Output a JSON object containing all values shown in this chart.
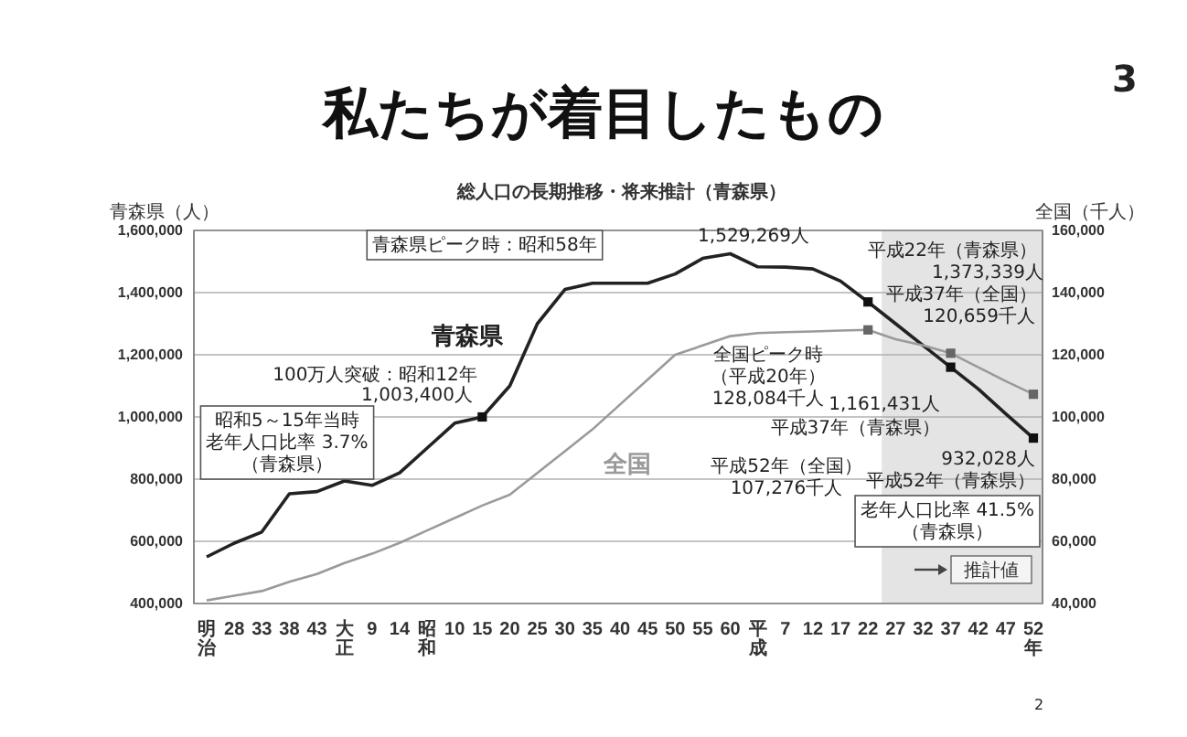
{
  "chart_data": {
    "type": "line",
    "title": "私たちが着目したもの",
    "subtitle": "総人口の長期推移・将来推計（青森県）",
    "ylabel": "青森県（人）",
    "y2label": "全国（千人）",
    "categories": [
      "明治",
      "28",
      "33",
      "38",
      "43",
      "大正",
      "9",
      "14",
      "昭和",
      "10",
      "15",
      "20",
      "25",
      "30",
      "35",
      "40",
      "45",
      "50",
      "55",
      "60",
      "平成",
      "7",
      "12",
      "17",
      "22",
      "27",
      "32",
      "37",
      "42",
      "47",
      "52年"
    ],
    "ylim": [
      400000,
      1600000
    ],
    "yticks": [
      {
        "value": 400000,
        "label": "400,000"
      },
      {
        "value": 600000,
        "label": "600,000"
      },
      {
        "value": 800000,
        "label": "800,000"
      },
      {
        "value": 1000000,
        "label": "1,000,000"
      },
      {
        "value": 1200000,
        "label": "1,200,000"
      },
      {
        "value": 1400000,
        "label": "1,400,000"
      },
      {
        "value": 1600000,
        "label": "1,600,000"
      }
    ],
    "y2lim": [
      40000,
      160000
    ],
    "y2ticks": [
      {
        "value": 40000,
        "label": "40,000"
      },
      {
        "value": 60000,
        "label": "60,000"
      },
      {
        "value": 80000,
        "label": "80,000"
      },
      {
        "value": 100000,
        "label": "100,000"
      },
      {
        "value": 120000,
        "label": "120,000"
      },
      {
        "value": 140000,
        "label": "140,000"
      },
      {
        "value": 160000,
        "label": "160,000"
      }
    ],
    "grid": "y",
    "series": [
      {
        "name": "青森県",
        "color": "#222222",
        "values": [
          550000,
          594000,
          630000,
          753000,
          760000,
          794000,
          780000,
          820000,
          900000,
          980000,
          1000000,
          1100000,
          1300000,
          1410000,
          1430000,
          1430000,
          1430000,
          1460000,
          1510000,
          1525000,
          1483000,
          1482000,
          1476000,
          1437000,
          1370000,
          1300000,
          1230000,
          1160000,
          1090000,
          1010000,
          932000
        ]
      },
      {
        "name": "全国",
        "color": "#9a9a9a",
        "axis": "y2",
        "values": [
          41000,
          42500,
          44000,
          47000,
          49500,
          53000,
          56000,
          59500,
          63500,
          67500,
          71500,
          75000,
          82000,
          89000,
          96000,
          104000,
          112000,
          120000,
          123000,
          126000,
          127000,
          127300,
          127500,
          127800,
          128000,
          125000,
          123000,
          120500,
          116000,
          111500,
          107300
        ]
      },
      {
        "type": "scatter",
        "marker": "square",
        "color": "#111111",
        "values": [
          null,
          null,
          null,
          null,
          null,
          null,
          null,
          null,
          null,
          null,
          1000000,
          null,
          null,
          null,
          null,
          null,
          null,
          null,
          null,
          null,
          null,
          null,
          null,
          null,
          1370000,
          null,
          null,
          1160000,
          null,
          null,
          932000
        ]
      },
      {
        "type": "scatter",
        "marker": "square",
        "color": "#666666",
        "axis": "y2",
        "values": [
          null,
          null,
          null,
          null,
          null,
          null,
          null,
          null,
          null,
          null,
          null,
          null,
          null,
          null,
          null,
          null,
          null,
          null,
          null,
          null,
          null,
          null,
          null,
          null,
          128000,
          null,
          null,
          120500,
          null,
          null,
          107300
        ]
      }
    ],
    "bands": [
      {
        "axis": "x",
        "from": "22",
        "to": "52年",
        "label": "推計値",
        "color": "#e4e4e4"
      }
    ],
    "annotations": [
      "青森県ピーク時：昭和58年",
      "1,529,269人",
      "平成22年（青森県）",
      "1,373,339人",
      "平成37年（全国）",
      "120,659千人",
      "全国ピーク時",
      "（平成20年）",
      "128,084千人",
      "1,161,431人",
      "平成37年（青森県）",
      "平成52年（全国）",
      "107,276千人",
      "932,028人",
      "平成52年（青森県）",
      "老年人口比率 41.5%",
      "（青森県）",
      "100万人突破：昭和12年",
      "1,003,400人",
      "昭和5～15年当時",
      "老年人口比率 3.7%",
      "（青森県）",
      "3",
      "2"
    ]
  }
}
